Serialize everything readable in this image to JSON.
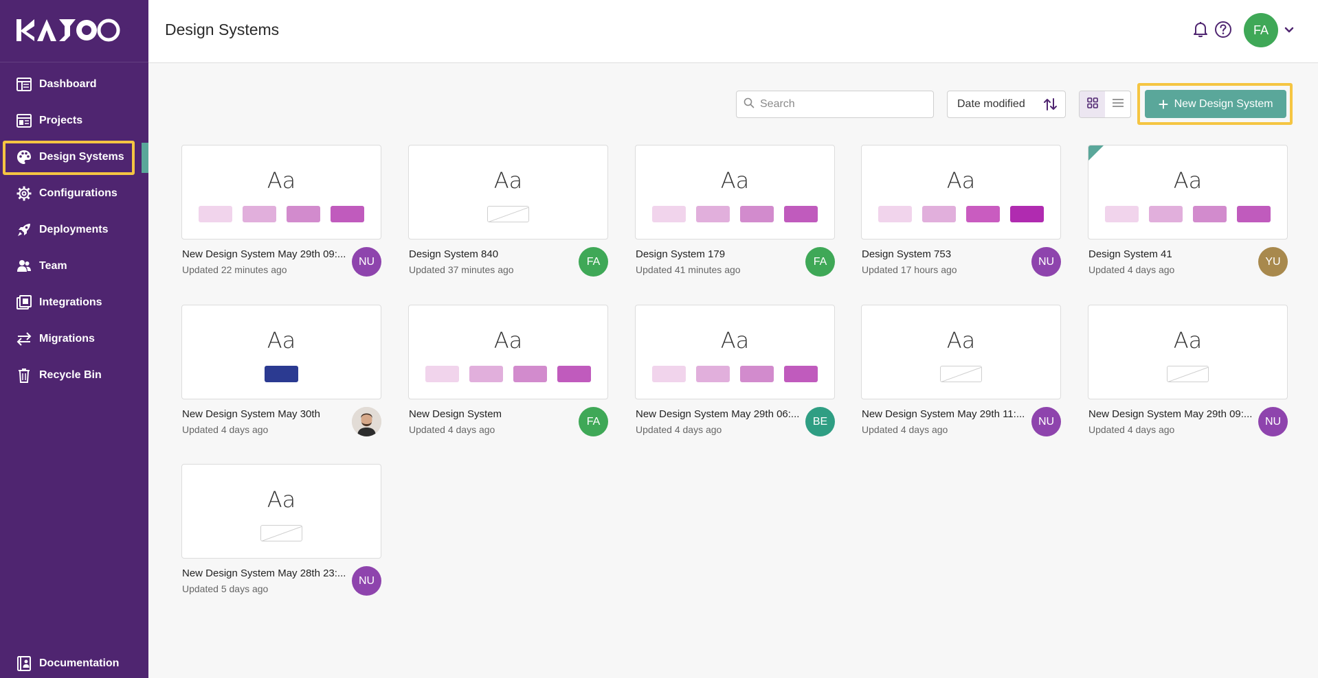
{
  "brand": {
    "logo_text": "KAJOO"
  },
  "sidebar": {
    "items": [
      {
        "label": "Dashboard",
        "icon": "dashboard-icon"
      },
      {
        "label": "Projects",
        "icon": "projects-icon"
      },
      {
        "label": "Design Systems",
        "icon": "palette-icon"
      },
      {
        "label": "Configurations",
        "icon": "gear-icon"
      },
      {
        "label": "Deployments",
        "icon": "rocket-icon"
      },
      {
        "label": "Team",
        "icon": "team-icon"
      },
      {
        "label": "Integrations",
        "icon": "integrations-icon"
      },
      {
        "label": "Migrations",
        "icon": "migrations-icon"
      },
      {
        "label": "Recycle Bin",
        "icon": "trash-icon"
      }
    ],
    "active_index": 2,
    "documentation_label": "Documentation"
  },
  "header": {
    "title": "Design Systems",
    "user_initials": "FA"
  },
  "toolbar": {
    "search_placeholder": "Search",
    "sort_label": "Date modified",
    "new_button_label": "New Design System"
  },
  "colors": {
    "sidebar_bg": "#4f2570",
    "accent_teal": "#5aa79a",
    "highlight": "#f5c542"
  },
  "cards": [
    {
      "name": "New Design System May 29th 09:...",
      "updated": "Updated 22 minutes ago",
      "initials": "NU",
      "avatar_color": "#8e44ad",
      "swatches": [
        "#f1d4ec",
        "#e1afdc",
        "#d28bcd",
        "#c05bbd"
      ]
    },
    {
      "name": "Design System 840",
      "updated": "Updated 37 minutes ago",
      "initials": "FA",
      "avatar_color": "#3fa857",
      "swatches": []
    },
    {
      "name": "Design System 179",
      "updated": "Updated 41 minutes ago",
      "initials": "FA",
      "avatar_color": "#3fa857",
      "swatches": [
        "#f1d4ec",
        "#e1afdc",
        "#d28bcd",
        "#c05bbd"
      ]
    },
    {
      "name": "Design System 753",
      "updated": "Updated 17 hours ago",
      "initials": "NU",
      "avatar_color": "#8e44ad",
      "swatches": [
        "#f1d4ec",
        "#e1afdc",
        "#c95cc0",
        "#b02bb0"
      ]
    },
    {
      "name": "Design System 41",
      "updated": "Updated 4 days ago",
      "initials": "YU",
      "avatar_color": "#a8894d",
      "swatches": [
        "#f1d4ec",
        "#e1afdc",
        "#d28bcd",
        "#c05bbd"
      ],
      "corner": true
    },
    {
      "name": "New Design System May 30th",
      "updated": "Updated 4 days ago",
      "initials": "",
      "avatar_color": "#d9d2cc",
      "photo": true,
      "swatches": [
        "#2b3a91"
      ]
    },
    {
      "name": "New Design System",
      "updated": "Updated 4 days ago",
      "initials": "FA",
      "avatar_color": "#3fa857",
      "swatches": [
        "#f1d4ec",
        "#e1afdc",
        "#d28bcd",
        "#c05bbd"
      ]
    },
    {
      "name": "New Design System May 29th 06:...",
      "updated": "Updated 4 days ago",
      "initials": "BE",
      "avatar_color": "#2f9e83",
      "swatches": [
        "#f1d4ec",
        "#e1afdc",
        "#d28bcd",
        "#c05bbd"
      ]
    },
    {
      "name": "New Design System May 29th 11:...",
      "updated": "Updated 4 days ago",
      "initials": "NU",
      "avatar_color": "#8e44ad",
      "swatches": []
    },
    {
      "name": "New Design System May 29th 09:...",
      "updated": "Updated 4 days ago",
      "initials": "NU",
      "avatar_color": "#8e44ad",
      "swatches": []
    },
    {
      "name": "New Design System May 28th 23:...",
      "updated": "Updated 5 days ago",
      "initials": "NU",
      "avatar_color": "#8e44ad",
      "swatches": []
    }
  ]
}
